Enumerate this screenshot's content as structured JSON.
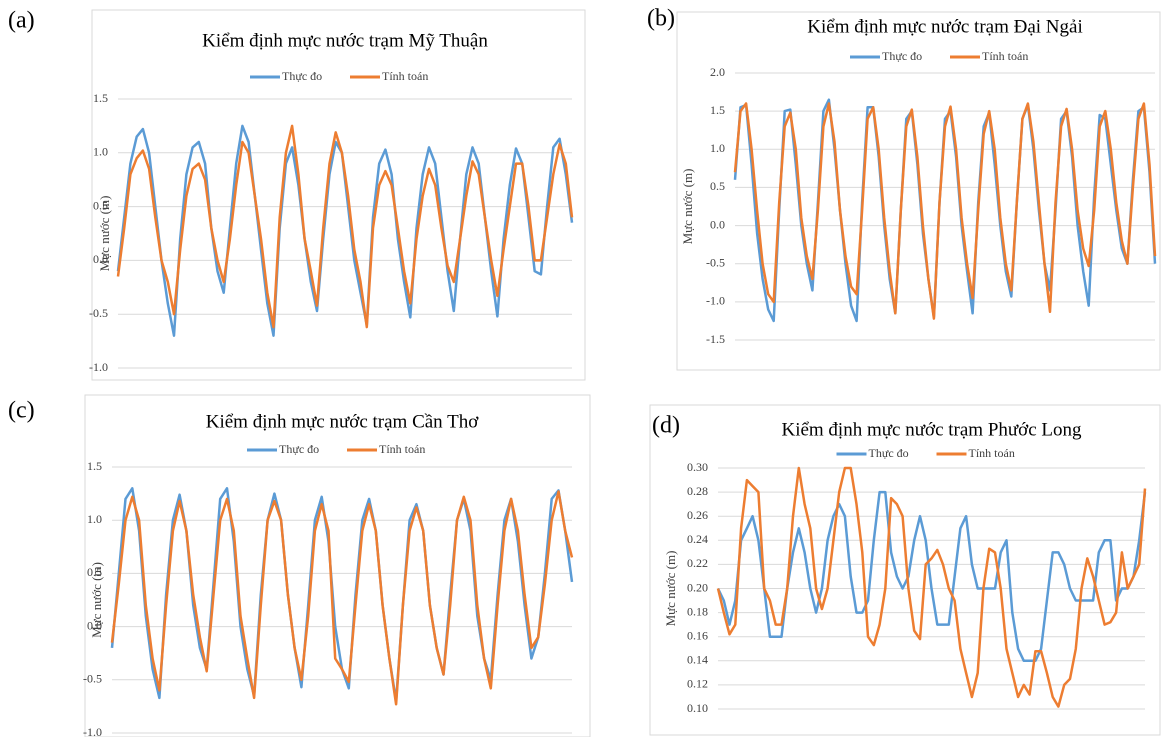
{
  "chart_data": [
    {
      "type": "line",
      "label": "(a)",
      "title": "Kiểm định mực nước trạm Mỹ Thuận",
      "y_label": "Mực nước (m)",
      "ylim": [
        -1,
        1.5
      ],
      "yticks": [
        {
          "value": -1,
          "label": "-1.0"
        },
        -0.5,
        {
          "value": 0,
          "label": "0.0"
        },
        0.5,
        {
          "value": 1,
          "label": "1.0"
        },
        1.5
      ],
      "grid": true,
      "series": [
        {
          "name": "Thực đo",
          "color": "#5b9bd5",
          "values": [
            -0.1,
            0.4,
            0.9,
            1.15,
            1.22,
            1.0,
            0.5,
            0.0,
            -0.4,
            -0.7,
            0.2,
            0.8,
            1.05,
            1.1,
            0.9,
            0.3,
            -0.1,
            -0.3,
            0.3,
            0.9,
            1.25,
            1.1,
            0.6,
            0.1,
            -0.4,
            -0.7,
            0.3,
            0.9,
            1.05,
            0.7,
            0.2,
            -0.2,
            -0.47,
            0.2,
            0.8,
            1.1,
            1.0,
            0.5,
            0.0,
            -0.3,
            -0.6,
            0.4,
            0.9,
            1.03,
            0.8,
            0.2,
            -0.2,
            -0.53,
            0.3,
            0.8,
            1.05,
            0.9,
            0.4,
            -0.1,
            -0.47,
            0.2,
            0.8,
            1.05,
            0.9,
            0.4,
            -0.1,
            -0.52,
            0.2,
            0.7,
            1.04,
            0.9,
            0.4,
            -0.1,
            -0.13,
            0.5,
            1.05,
            1.13,
            0.8,
            0.35
          ]
        },
        {
          "name": "Tính toán",
          "color": "#ed7d31",
          "values": [
            -0.15,
            0.3,
            0.8,
            0.95,
            1.02,
            0.85,
            0.4,
            0.0,
            -0.2,
            -0.5,
            0.1,
            0.6,
            0.85,
            0.9,
            0.75,
            0.3,
            0.0,
            -0.2,
            0.2,
            0.7,
            1.1,
            1.0,
            0.6,
            0.2,
            -0.3,
            -0.62,
            0.4,
            1.0,
            1.25,
            0.8,
            0.2,
            -0.1,
            -0.42,
            0.3,
            0.9,
            1.19,
            1.0,
            0.6,
            0.1,
            -0.2,
            -0.62,
            0.3,
            0.7,
            0.83,
            0.7,
            0.3,
            -0.1,
            -0.4,
            0.2,
            0.6,
            0.85,
            0.7,
            0.3,
            -0.05,
            -0.2,
            0.2,
            0.6,
            0.92,
            0.8,
            0.4,
            0.0,
            -0.33,
            0.1,
            0.5,
            0.9,
            0.9,
            0.5,
            0.0,
            0.0,
            0.4,
            0.8,
            1.08,
            0.9,
            0.4
          ]
        }
      ]
    },
    {
      "type": "line",
      "label": "(b)",
      "title": "Kiểm định mực nước trạm Đại Ngải",
      "y_label": "Mực nước (m)",
      "ylim": [
        -1.5,
        2
      ],
      "yticks": [
        -1.5,
        {
          "value": -1,
          "label": "-1.0"
        },
        -0.5,
        {
          "value": 0,
          "label": "0.0"
        },
        0.5,
        {
          "value": 1,
          "label": "1.0"
        },
        1.5,
        {
          "value": 2,
          "label": "2.0"
        }
      ],
      "grid": true,
      "series": [
        {
          "name": "Thực đo",
          "color": "#5b9bd5",
          "values": [
            0.6,
            1.55,
            1.58,
            0.8,
            -0.1,
            -0.7,
            -1.1,
            -1.25,
            0.2,
            1.5,
            1.52,
            0.8,
            0.0,
            -0.5,
            -0.85,
            0.3,
            1.5,
            1.65,
            1.0,
            0.2,
            -0.5,
            -1.05,
            -1.25,
            0.3,
            1.55,
            1.55,
            0.9,
            0.0,
            -0.7,
            -1.15,
            0.2,
            1.4,
            1.5,
            0.8,
            -0.1,
            -0.7,
            -1.2,
            0.3,
            1.4,
            1.5,
            0.9,
            0.0,
            -0.6,
            -1.15,
            0.3,
            1.3,
            1.48,
            0.8,
            0.0,
            -0.6,
            -0.93,
            0.3,
            1.4,
            1.58,
            1.0,
            0.2,
            -0.5,
            -0.85,
            0.2,
            1.4,
            1.5,
            0.9,
            0.0,
            -0.6,
            -1.05,
            0.4,
            1.45,
            1.4,
            0.8,
            0.2,
            -0.3,
            -0.5,
            0.6,
            1.5,
            1.55,
            0.7,
            -0.5
          ]
        },
        {
          "name": "Tính toán",
          "color": "#ed7d31",
          "values": [
            0.7,
            1.5,
            1.6,
            1.0,
            0.2,
            -0.5,
            -0.9,
            -1.0,
            0.3,
            1.3,
            1.48,
            1.0,
            0.1,
            -0.4,
            -0.7,
            0.2,
            1.3,
            1.6,
            1.1,
            0.2,
            -0.4,
            -0.8,
            -0.9,
            0.2,
            1.4,
            1.55,
            1.0,
            0.1,
            -0.6,
            -1.15,
            0.2,
            1.3,
            1.52,
            0.9,
            0.0,
            -0.7,
            -1.22,
            0.3,
            1.3,
            1.56,
            1.0,
            0.1,
            -0.5,
            -0.95,
            0.2,
            1.2,
            1.5,
            1.0,
            0.1,
            -0.5,
            -0.85,
            0.3,
            1.4,
            1.6,
            1.1,
            0.3,
            -0.5,
            -1.13,
            0.3,
            1.3,
            1.53,
            1.0,
            0.2,
            -0.3,
            -0.53,
            0.2,
            1.3,
            1.5,
            1.0,
            0.3,
            -0.2,
            -0.5,
            0.5,
            1.4,
            1.6,
            0.8,
            -0.4
          ]
        }
      ]
    },
    {
      "type": "line",
      "label": "(c)",
      "title": "Kiểm định mực nước trạm Cần Thơ",
      "y_label": "Mực nước (m)",
      "ylim": [
        -1,
        1.5
      ],
      "yticks": [
        {
          "value": -1,
          "label": "-1.0"
        },
        -0.5,
        {
          "value": 0,
          "label": "0.0"
        },
        0.5,
        {
          "value": 1,
          "label": "1.0"
        },
        1.5
      ],
      "grid": true,
      "series": [
        {
          "name": "Thực đo",
          "color": "#5b9bd5",
          "values": [
            -0.2,
            0.5,
            1.2,
            1.3,
            0.9,
            0.1,
            -0.4,
            -0.67,
            0.3,
            1.0,
            1.24,
            0.9,
            0.2,
            -0.2,
            -0.4,
            0.4,
            1.2,
            1.3,
            0.8,
            0.0,
            -0.4,
            -0.65,
            0.3,
            1.0,
            1.25,
            1.0,
            0.3,
            -0.2,
            -0.57,
            0.2,
            1.0,
            1.22,
            0.8,
            0.0,
            -0.4,
            -0.58,
            0.3,
            1.0,
            1.2,
            0.9,
            0.2,
            -0.3,
            -0.7,
            0.2,
            1.0,
            1.15,
            0.9,
            0.2,
            -0.2,
            -0.45,
            0.3,
            1.0,
            1.2,
            0.9,
            0.1,
            -0.3,
            -0.5,
            0.3,
            1.0,
            1.2,
            0.8,
            0.2,
            -0.3,
            -0.1,
            0.5,
            1.2,
            1.28,
            0.9,
            0.42
          ]
        },
        {
          "name": "Tính toán",
          "color": "#ed7d31",
          "values": [
            -0.15,
            0.4,
            1.0,
            1.22,
            1.0,
            0.2,
            -0.3,
            -0.6,
            0.2,
            0.9,
            1.18,
            0.9,
            0.3,
            -0.1,
            -0.42,
            0.3,
            1.0,
            1.2,
            0.9,
            0.1,
            -0.3,
            -0.67,
            0.2,
            1.0,
            1.18,
            1.0,
            0.3,
            -0.2,
            -0.5,
            0.1,
            0.9,
            1.15,
            0.9,
            -0.3,
            -0.4,
            -0.52,
            0.2,
            0.9,
            1.15,
            0.9,
            0.2,
            -0.3,
            -0.73,
            0.2,
            0.9,
            1.12,
            0.9,
            0.2,
            -0.2,
            -0.45,
            0.2,
            1.0,
            1.22,
            1.0,
            0.2,
            -0.3,
            -0.58,
            0.2,
            0.9,
            1.2,
            0.9,
            0.3,
            -0.2,
            -0.1,
            0.4,
            1.0,
            1.27,
            0.9,
            0.65
          ]
        }
      ]
    },
    {
      "type": "line",
      "label": "(d)",
      "title": "Kiểm định mực nước trạm Phước Long",
      "y_label": "Mực nước (m)",
      "ylim": [
        0.1,
        0.3
      ],
      "yticks": [
        {
          "value": 0.1,
          "label": "0.10"
        },
        0.12,
        0.14,
        0.16,
        0.18,
        {
          "value": 0.2,
          "label": "0.20"
        },
        0.22,
        0.24,
        0.26,
        0.28,
        {
          "value": 0.3,
          "label": "0.30"
        }
      ],
      "grid": true,
      "series": [
        {
          "name": "Thực đo",
          "color": "#5b9bd5",
          "values": [
            0.2,
            0.19,
            0.17,
            0.19,
            0.24,
            0.25,
            0.26,
            0.24,
            0.2,
            0.16,
            0.16,
            0.16,
            0.2,
            0.23,
            0.25,
            0.23,
            0.2,
            0.18,
            0.2,
            0.24,
            0.26,
            0.27,
            0.26,
            0.21,
            0.18,
            0.18,
            0.19,
            0.24,
            0.28,
            0.28,
            0.23,
            0.21,
            0.2,
            0.21,
            0.24,
            0.26,
            0.24,
            0.2,
            0.17,
            0.17,
            0.17,
            0.21,
            0.25,
            0.26,
            0.22,
            0.2,
            0.2,
            0.2,
            0.2,
            0.23,
            0.24,
            0.18,
            0.15,
            0.14,
            0.14,
            0.14,
            0.15,
            0.19,
            0.23,
            0.23,
            0.22,
            0.2,
            0.19,
            0.19,
            0.19,
            0.19,
            0.23,
            0.24,
            0.24,
            0.19,
            0.2,
            0.2,
            0.21,
            0.24,
            0.28
          ]
        },
        {
          "name": "Tính toán",
          "color": "#ed7d31",
          "values": [
            0.2,
            0.18,
            0.162,
            0.17,
            0.25,
            0.29,
            0.285,
            0.28,
            0.2,
            0.19,
            0.17,
            0.17,
            0.2,
            0.26,
            0.3,
            0.27,
            0.25,
            0.2,
            0.183,
            0.2,
            0.24,
            0.28,
            0.3,
            0.3,
            0.27,
            0.23,
            0.16,
            0.153,
            0.17,
            0.2,
            0.275,
            0.27,
            0.26,
            0.2,
            0.165,
            0.158,
            0.22,
            0.225,
            0.232,
            0.22,
            0.2,
            0.19,
            0.15,
            0.13,
            0.11,
            0.13,
            0.2,
            0.233,
            0.23,
            0.2,
            0.15,
            0.13,
            0.11,
            0.12,
            0.112,
            0.148,
            0.148,
            0.13,
            0.11,
            0.102,
            0.12,
            0.125,
            0.15,
            0.2,
            0.225,
            0.21,
            0.19,
            0.17,
            0.172,
            0.18,
            0.23,
            0.2,
            0.21,
            0.22,
            0.283
          ]
        }
      ]
    }
  ]
}
